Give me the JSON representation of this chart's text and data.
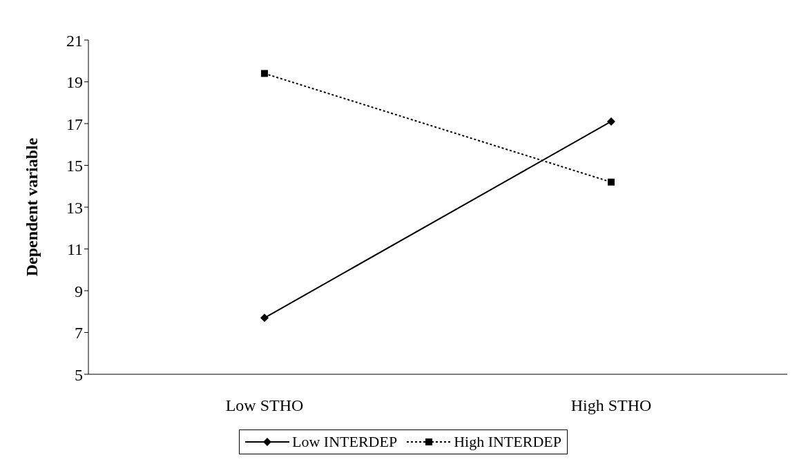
{
  "chart_data": {
    "type": "line",
    "ylabel": "Dependent variable",
    "categories": [
      "Low STHO",
      "High STHO"
    ],
    "series": [
      {
        "name": "Low INTERDEP",
        "color": "#000000",
        "values": [
          7.7,
          17.1
        ],
        "marker": "diamond",
        "line_style": "solid"
      },
      {
        "name": "High INTERDEP",
        "color": "#000000",
        "values": [
          19.4,
          14.2
        ],
        "marker": "square",
        "line_style": "dotted"
      }
    ],
    "ylim": [
      5,
      21
    ],
    "yticks": [
      5,
      7,
      9,
      11,
      13,
      15,
      17,
      19,
      21
    ],
    "grid": false,
    "legend": "bottom"
  }
}
